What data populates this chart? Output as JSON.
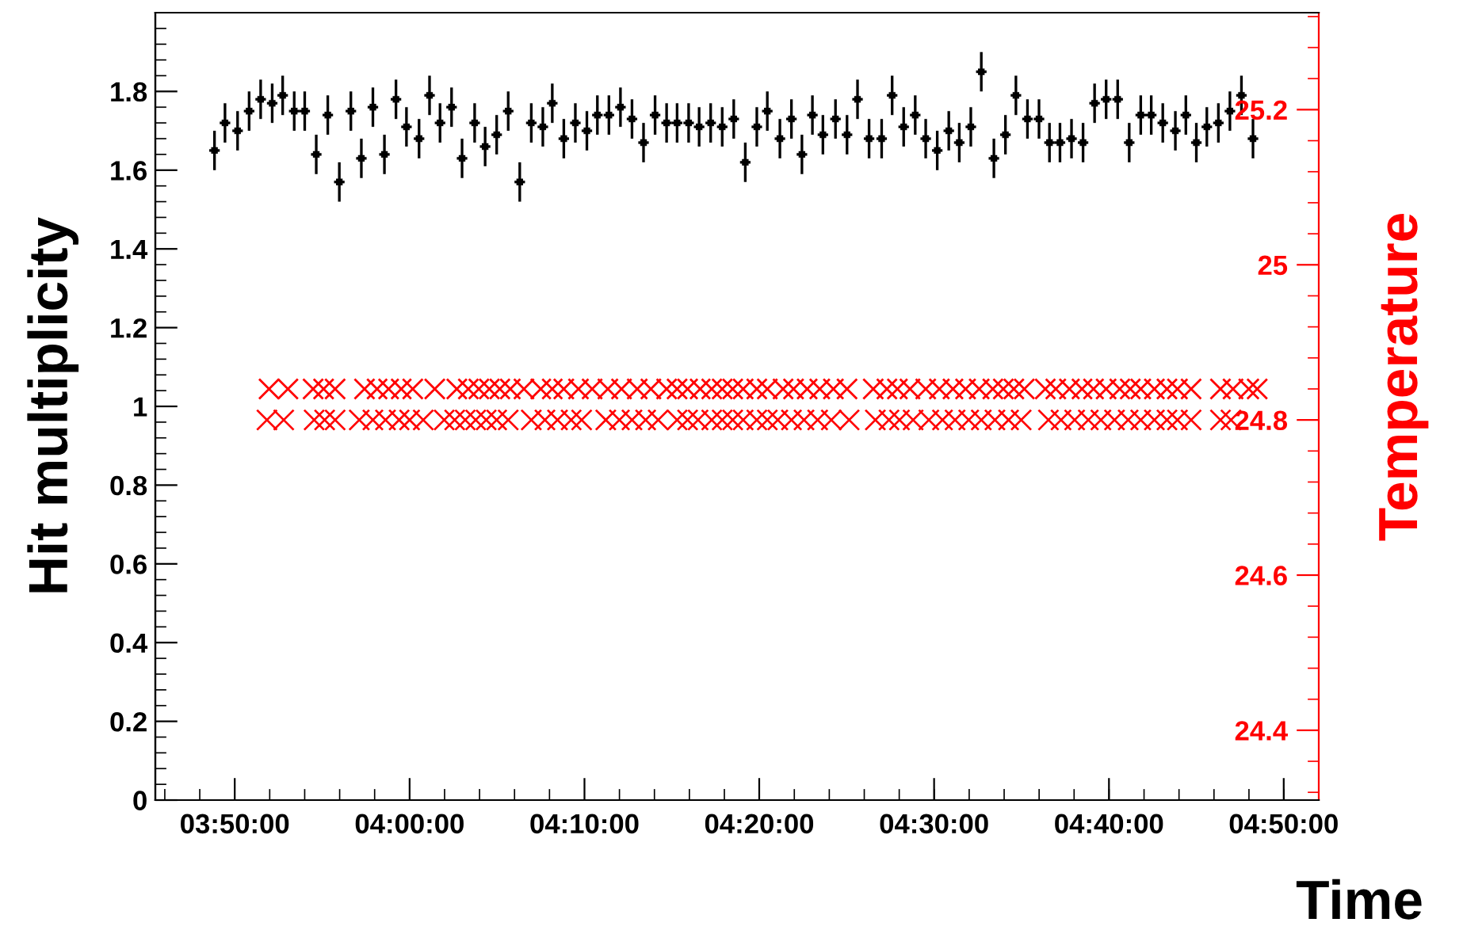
{
  "chart_data": {
    "type": "scatter",
    "xlabel": "Time",
    "ylabel": "Hit multiplicity",
    "y2label": "Temperature",
    "xlim": [
      3.7576,
      4.8667
    ],
    "ylim": [
      0,
      2.0
    ],
    "y2lim": [
      24.31,
      25.325
    ],
    "xticks": [
      {
        "value": 3.8333,
        "label": "03:50:00"
      },
      {
        "value": 4.0,
        "label": "04:00:00"
      },
      {
        "value": 4.1667,
        "label": "04:10:00"
      },
      {
        "value": 4.3333,
        "label": "04:20:00"
      },
      {
        "value": 4.5,
        "label": "04:30:00"
      },
      {
        "value": 4.6667,
        "label": "04:40:00"
      },
      {
        "value": 4.8333,
        "label": "04:50:00"
      }
    ],
    "yticks": [
      0,
      0.2,
      0.4,
      0.6,
      0.8,
      1,
      1.2,
      1.4,
      1.6,
      1.8
    ],
    "y2ticks": [
      24.4,
      24.6,
      24.8,
      25,
      25.2
    ],
    "grid": false,
    "legend": false,
    "series": [
      {
        "color": "#000000",
        "marker": "square",
        "x": [
          3.814,
          3.824,
          3.836,
          3.847,
          3.858,
          3.869,
          3.879,
          3.89,
          3.9,
          3.911,
          3.922,
          3.933,
          3.944,
          3.954,
          3.965,
          3.976,
          3.987,
          3.997,
          4.009,
          4.019,
          4.029,
          4.04,
          4.05,
          4.062,
          4.072,
          4.083,
          4.094,
          4.105,
          4.116,
          4.127,
          4.136,
          4.147,
          4.158,
          4.169,
          4.179,
          4.19,
          4.201,
          4.212,
          4.223,
          4.234,
          4.245,
          4.255,
          4.266,
          4.276,
          4.287,
          4.298,
          4.309,
          4.32,
          4.331,
          4.341,
          4.353,
          4.364,
          4.374,
          4.384,
          4.394,
          4.406,
          4.417,
          4.427,
          4.438,
          4.45,
          4.46,
          4.471,
          4.482,
          4.492,
          4.503,
          4.514,
          4.524,
          4.535,
          4.545,
          4.557,
          4.568,
          4.578,
          4.589,
          4.6,
          4.61,
          4.62,
          4.631,
          4.642,
          4.653,
          4.664,
          4.675,
          4.686,
          4.697,
          4.707,
          4.718,
          4.73,
          4.74,
          4.75,
          4.76,
          4.771,
          4.782,
          4.793,
          4.804
        ],
        "values": [
          1.65,
          1.72,
          1.7,
          1.75,
          1.78,
          1.77,
          1.79,
          1.75,
          1.75,
          1.64,
          1.74,
          1.57,
          1.75,
          1.63,
          1.76,
          1.64,
          1.78,
          1.71,
          1.68,
          1.79,
          1.72,
          1.76,
          1.63,
          1.72,
          1.66,
          1.69,
          1.75,
          1.57,
          1.72,
          1.71,
          1.77,
          1.68,
          1.72,
          1.7,
          1.74,
          1.74,
          1.76,
          1.73,
          1.67,
          1.74,
          1.72,
          1.72,
          1.72,
          1.71,
          1.72,
          1.71,
          1.73,
          1.62,
          1.71,
          1.75,
          1.68,
          1.73,
          1.64,
          1.74,
          1.69,
          1.73,
          1.69,
          1.78,
          1.68,
          1.68,
          1.79,
          1.71,
          1.74,
          1.68,
          1.65,
          1.7,
          1.67,
          1.71,
          1.85,
          1.63,
          1.69,
          1.79,
          1.73,
          1.73,
          1.67,
          1.67,
          1.68,
          1.67,
          1.77,
          1.78,
          1.78,
          1.67,
          1.74,
          1.74,
          1.72,
          1.7,
          1.74,
          1.67,
          1.71,
          1.72,
          1.75,
          1.79,
          1.68
        ],
        "errors": [
          0.05,
          0.05,
          0.05,
          0.05,
          0.05,
          0.05,
          0.05,
          0.05,
          0.05,
          0.05,
          0.05,
          0.05,
          0.05,
          0.05,
          0.05,
          0.05,
          0.05,
          0.05,
          0.05,
          0.05,
          0.05,
          0.05,
          0.05,
          0.05,
          0.05,
          0.05,
          0.05,
          0.05,
          0.05,
          0.05,
          0.05,
          0.05,
          0.05,
          0.05,
          0.05,
          0.05,
          0.05,
          0.05,
          0.05,
          0.05,
          0.05,
          0.05,
          0.05,
          0.05,
          0.05,
          0.05,
          0.05,
          0.05,
          0.05,
          0.05,
          0.05,
          0.05,
          0.05,
          0.05,
          0.05,
          0.05,
          0.05,
          0.05,
          0.05,
          0.05,
          0.05,
          0.05,
          0.05,
          0.05,
          0.05,
          0.05,
          0.05,
          0.05,
          0.05,
          0.05,
          0.05,
          0.05,
          0.05,
          0.05,
          0.05,
          0.05,
          0.05,
          0.05,
          0.05,
          0.05,
          0.05,
          0.05,
          0.05,
          0.05,
          0.05,
          0.05,
          0.05,
          0.05,
          0.05,
          0.05,
          0.05,
          0.05,
          0.05
        ],
        "xerrors": [
          0.005,
          0.005,
          0.005,
          0.005,
          0.005,
          0.005,
          0.005,
          0.005,
          0.005,
          0.005,
          0.005,
          0.005,
          0.005,
          0.005,
          0.005,
          0.005,
          0.005,
          0.005,
          0.005,
          0.005,
          0.005,
          0.005,
          0.005,
          0.005,
          0.005,
          0.005,
          0.005,
          0.005,
          0.005,
          0.005,
          0.005,
          0.005,
          0.005,
          0.005,
          0.005,
          0.005,
          0.005,
          0.005,
          0.005,
          0.005,
          0.005,
          0.005,
          0.005,
          0.005,
          0.005,
          0.005,
          0.005,
          0.005,
          0.005,
          0.005,
          0.005,
          0.005,
          0.005,
          0.005,
          0.005,
          0.005,
          0.005,
          0.005,
          0.005,
          0.005,
          0.005,
          0.005,
          0.005,
          0.005,
          0.005,
          0.005,
          0.005,
          0.005,
          0.005,
          0.005,
          0.005,
          0.005,
          0.005,
          0.005,
          0.005,
          0.005,
          0.005,
          0.005,
          0.005,
          0.005,
          0.005,
          0.005,
          0.005,
          0.005,
          0.005,
          0.005,
          0.005,
          0.005,
          0.005,
          0.005,
          0.005,
          0.005,
          0.005
        ]
      },
      {
        "color": "#ff0000",
        "marker": "cross",
        "axis": "y2",
        "x": [
          3.866,
          3.884,
          3.908,
          3.918,
          3.929,
          3.957,
          3.969,
          3.98,
          3.992,
          4.003,
          4.024,
          4.045,
          4.056,
          4.066,
          4.076,
          4.086,
          4.096,
          4.109,
          4.125,
          4.136,
          4.147,
          4.161,
          4.174,
          4.189,
          4.202,
          4.217,
          4.23,
          4.245,
          4.255,
          4.265,
          4.277,
          4.288,
          4.298,
          4.308,
          4.318,
          4.331,
          4.341,
          4.356,
          4.366,
          4.379,
          4.391,
          4.404,
          4.417,
          4.442,
          4.455,
          4.465,
          4.477,
          4.492,
          4.505,
          4.518,
          4.53,
          4.543,
          4.556,
          4.566,
          4.576,
          4.586,
          4.606,
          4.616,
          4.629,
          4.641,
          4.652,
          4.664,
          4.677,
          4.687,
          4.697,
          4.71,
          4.722,
          4.732,
          4.745,
          4.773,
          4.785,
          4.8,
          4.808
        ],
        "values": [
          24.84,
          24.84,
          24.84,
          24.84,
          24.84,
          24.84,
          24.84,
          24.84,
          24.84,
          24.84,
          24.84,
          24.84,
          24.84,
          24.84,
          24.84,
          24.84,
          24.84,
          24.84,
          24.84,
          24.84,
          24.84,
          24.84,
          24.84,
          24.84,
          24.84,
          24.84,
          24.84,
          24.84,
          24.84,
          24.84,
          24.84,
          24.84,
          24.84,
          24.84,
          24.84,
          24.84,
          24.84,
          24.84,
          24.84,
          24.84,
          24.84,
          24.84,
          24.84,
          24.84,
          24.84,
          24.84,
          24.84,
          24.84,
          24.84,
          24.84,
          24.84,
          24.84,
          24.84,
          24.84,
          24.84,
          24.84,
          24.84,
          24.84,
          24.84,
          24.84,
          24.84,
          24.84,
          24.84,
          24.84,
          24.84,
          24.84,
          24.84,
          24.84,
          24.84,
          24.84,
          24.84,
          24.84,
          24.84
        ]
      },
      {
        "color": "#ff0000",
        "marker": "cross",
        "axis": "y2",
        "x": [
          3.864,
          3.88,
          3.909,
          3.919,
          3.929,
          3.952,
          3.965,
          3.977,
          3.99,
          4.0,
          4.013,
          4.033,
          4.043,
          4.053,
          4.063,
          4.073,
          4.083,
          4.094,
          4.116,
          4.129,
          4.141,
          4.154,
          4.164,
          4.187,
          4.2,
          4.212,
          4.225,
          4.237,
          4.255,
          4.265,
          4.275,
          4.288,
          4.298,
          4.308,
          4.318,
          4.331,
          4.341,
          4.351,
          4.364,
          4.376,
          4.389,
          4.402,
          4.419,
          4.444,
          4.457,
          4.467,
          4.48,
          4.495,
          4.508,
          4.52,
          4.533,
          4.545,
          4.558,
          4.571,
          4.583,
          4.609,
          4.621,
          4.634,
          4.647,
          4.659,
          4.672,
          4.685,
          4.697,
          4.71,
          4.722,
          4.732,
          4.745,
          4.773,
          4.783
        ],
        "values": [
          24.8,
          24.8,
          24.8,
          24.8,
          24.8,
          24.8,
          24.8,
          24.8,
          24.8,
          24.8,
          24.8,
          24.8,
          24.8,
          24.8,
          24.8,
          24.8,
          24.8,
          24.8,
          24.8,
          24.8,
          24.8,
          24.8,
          24.8,
          24.8,
          24.8,
          24.8,
          24.8,
          24.8,
          24.8,
          24.8,
          24.8,
          24.8,
          24.8,
          24.8,
          24.8,
          24.8,
          24.8,
          24.8,
          24.8,
          24.8,
          24.8,
          24.8,
          24.8,
          24.8,
          24.8,
          24.8,
          24.8,
          24.8,
          24.8,
          24.8,
          24.8,
          24.8,
          24.8,
          24.8,
          24.8,
          24.8,
          24.8,
          24.8,
          24.8,
          24.8,
          24.8,
          24.8,
          24.8,
          24.8,
          24.8,
          24.8,
          24.8,
          24.8,
          24.8
        ]
      }
    ]
  }
}
